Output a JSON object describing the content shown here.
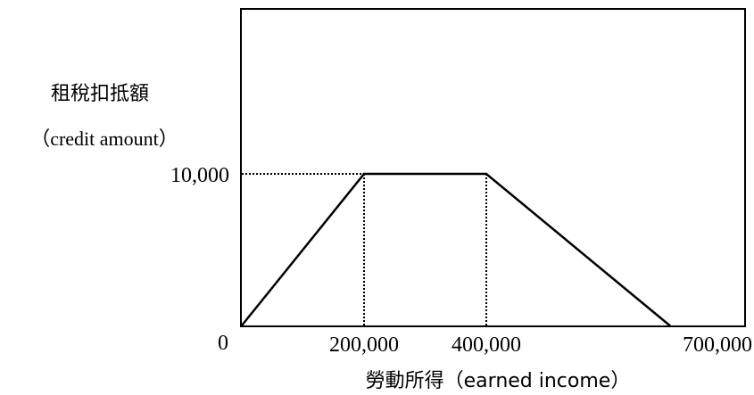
{
  "chart_data": {
    "type": "line",
    "ylabel_zh": "租稅扣抵額",
    "ylabel_en": "（credit amount）",
    "xlabel": "勞動所得（earned income）",
    "x_ticks": [
      {
        "value": 200000,
        "label": "200,000"
      },
      {
        "value": 400000,
        "label": "400,000"
      },
      {
        "value": 700000,
        "label": "700,000"
      }
    ],
    "y_ticks": [
      {
        "value": 0,
        "label": "0"
      },
      {
        "value": 10000,
        "label": "10,000"
      }
    ],
    "series": [
      {
        "points": [
          {
            "x": 0,
            "y": 0
          },
          {
            "x": 200000,
            "y": 10000
          },
          {
            "x": 400000,
            "y": 10000
          },
          {
            "x": 700000,
            "y": 0
          }
        ]
      }
    ],
    "guides": [
      {
        "kind": "horizontal",
        "y": 10000,
        "x_from": 0,
        "x_to": 200000
      },
      {
        "kind": "vertical",
        "x": 200000,
        "y_from": 0,
        "y_to": 10000
      },
      {
        "kind": "vertical",
        "x": 400000,
        "y_from": 0,
        "y_to": 10000
      }
    ],
    "xlim": [
      0,
      800000
    ],
    "ylim": [
      0,
      27000
    ],
    "grid": false,
    "line_color": "#000000",
    "guide_color": "#000000"
  }
}
